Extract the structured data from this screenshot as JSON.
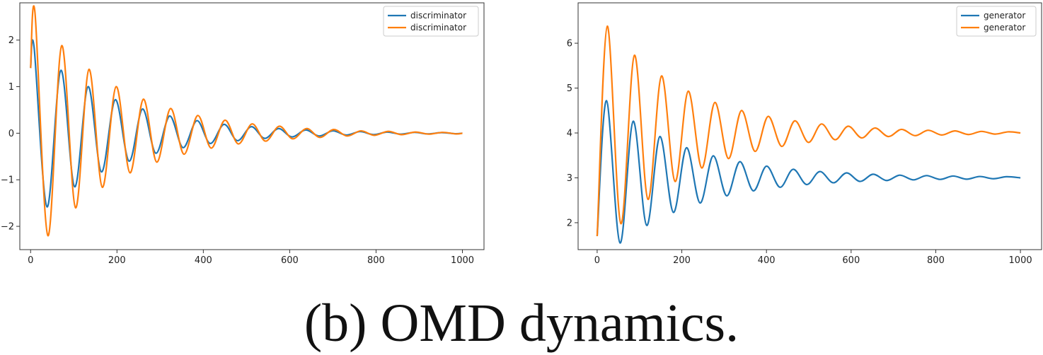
{
  "chart_data": [
    {
      "type": "line",
      "xlim": [
        -25,
        1050
      ],
      "ylim": [
        -2.5,
        2.8
      ],
      "xticks": [
        0,
        200,
        400,
        600,
        800,
        1000
      ],
      "yticks": [
        -2,
        -1,
        0,
        1,
        2
      ],
      "grid": false,
      "legend_position": "top-right",
      "series": [
        {
          "name": "discriminator",
          "color": "#1f77b4",
          "points": [
            [
              0,
              1.4
            ],
            [
              8,
              1.85
            ],
            [
              38,
              -1.58
            ],
            [
              70,
              1.35
            ],
            [
              102,
              -1.15
            ],
            [
              133,
              1.0
            ],
            [
              164,
              -0.83
            ],
            [
              196,
              0.72
            ],
            [
              228,
              -0.6
            ],
            [
              259,
              0.52
            ],
            [
              290,
              -0.43
            ],
            [
              322,
              0.37
            ],
            [
              353,
              -0.31
            ],
            [
              385,
              0.27
            ],
            [
              416,
              -0.22
            ],
            [
              448,
              0.19
            ],
            [
              479,
              -0.16
            ],
            [
              511,
              0.14
            ],
            [
              542,
              -0.11
            ],
            [
              574,
              0.1
            ],
            [
              605,
              -0.08
            ],
            [
              637,
              0.07
            ],
            [
              668,
              -0.06
            ],
            [
              700,
              0.05
            ],
            [
              731,
              -0.04
            ],
            [
              763,
              0.035
            ],
            [
              794,
              -0.03
            ],
            [
              826,
              0.025
            ],
            [
              857,
              -0.02
            ],
            [
              889,
              0.018
            ],
            [
              920,
              -0.015
            ],
            [
              952,
              0.013
            ],
            [
              983,
              -0.01
            ],
            [
              1000,
              0.0
            ]
          ]
        },
        {
          "name": "discriminator",
          "color": "#ff7f0e",
          "points": [
            [
              0,
              1.4
            ],
            [
              10,
              2.6
            ],
            [
              40,
              -2.2
            ],
            [
              72,
              1.88
            ],
            [
              104,
              -1.6
            ],
            [
              135,
              1.37
            ],
            [
              166,
              -1.16
            ],
            [
              198,
              1.0
            ],
            [
              230,
              -0.85
            ],
            [
              261,
              0.73
            ],
            [
              292,
              -0.62
            ],
            [
              324,
              0.53
            ],
            [
              355,
              -0.45
            ],
            [
              387,
              0.38
            ],
            [
              418,
              -0.32
            ],
            [
              450,
              0.28
            ],
            [
              481,
              -0.23
            ],
            [
              513,
              0.2
            ],
            [
              544,
              -0.17
            ],
            [
              576,
              0.15
            ],
            [
              607,
              -0.12
            ],
            [
              639,
              0.1
            ],
            [
              670,
              -0.09
            ],
            [
              702,
              0.08
            ],
            [
              733,
              -0.06
            ],
            [
              765,
              0.05
            ],
            [
              796,
              -0.045
            ],
            [
              828,
              0.04
            ],
            [
              859,
              -0.03
            ],
            [
              891,
              0.025
            ],
            [
              922,
              -0.02
            ],
            [
              954,
              0.018
            ],
            [
              985,
              -0.015
            ],
            [
              1000,
              0.0
            ]
          ]
        }
      ]
    },
    {
      "type": "line",
      "xlim": [
        -45,
        1050
      ],
      "ylim": [
        1.4,
        6.9
      ],
      "xticks": [
        0,
        200,
        400,
        600,
        800,
        1000
      ],
      "yticks": [
        2,
        3,
        4,
        5,
        6
      ],
      "grid": false,
      "legend_position": "top-right",
      "series": [
        {
          "name": "generator",
          "color": "#1f77b4",
          "points": [
            [
              0,
              1.7
            ],
            [
              22,
              4.72
            ],
            [
              54,
              1.55
            ],
            [
              85,
              4.26
            ],
            [
              117,
              1.94
            ],
            [
              148,
              3.92
            ],
            [
              180,
              2.23
            ],
            [
              211,
              3.67
            ],
            [
              243,
              2.44
            ],
            [
              274,
              3.49
            ],
            [
              306,
              2.6
            ],
            [
              337,
              3.36
            ],
            [
              369,
              2.71
            ],
            [
              400,
              3.26
            ],
            [
              432,
              2.79
            ],
            [
              463,
              3.19
            ],
            [
              495,
              2.85
            ],
            [
              526,
              3.14
            ],
            [
              558,
              2.89
            ],
            [
              589,
              3.11
            ],
            [
              621,
              2.92
            ],
            [
              652,
              3.08
            ],
            [
              684,
              2.94
            ],
            [
              715,
              3.06
            ],
            [
              747,
              2.955
            ],
            [
              778,
              3.05
            ],
            [
              810,
              2.965
            ],
            [
              841,
              3.04
            ],
            [
              873,
              2.97
            ],
            [
              904,
              3.03
            ],
            [
              936,
              2.98
            ],
            [
              967,
              3.025
            ],
            [
              1000,
              3.0
            ]
          ]
        },
        {
          "name": "generator",
          "color": "#ff7f0e",
          "points": [
            [
              0,
              1.7
            ],
            [
              24,
              6.38
            ],
            [
              56,
              1.98
            ],
            [
              88,
              5.73
            ],
            [
              120,
              2.52
            ],
            [
              152,
              5.27
            ],
            [
              184,
              2.92
            ],
            [
              215,
              4.93
            ],
            [
              247,
              3.22
            ],
            [
              278,
              4.68
            ],
            [
              310,
              3.43
            ],
            [
              341,
              4.5
            ],
            [
              373,
              3.59
            ],
            [
              404,
              4.37
            ],
            [
              436,
              3.7
            ],
            [
              467,
              4.27
            ],
            [
              499,
              3.79
            ],
            [
              530,
              4.2
            ],
            [
              562,
              3.85
            ],
            [
              593,
              4.15
            ],
            [
              625,
              3.89
            ],
            [
              656,
              4.11
            ],
            [
              688,
              3.92
            ],
            [
              719,
              4.08
            ],
            [
              751,
              3.94
            ],
            [
              782,
              4.06
            ],
            [
              814,
              3.955
            ],
            [
              845,
              4.045
            ],
            [
              877,
              3.965
            ],
            [
              908,
              4.035
            ],
            [
              940,
              3.975
            ],
            [
              971,
              4.025
            ],
            [
              1000,
              4.0
            ]
          ]
        }
      ]
    }
  ],
  "caption": "(b) OMD dynamics."
}
